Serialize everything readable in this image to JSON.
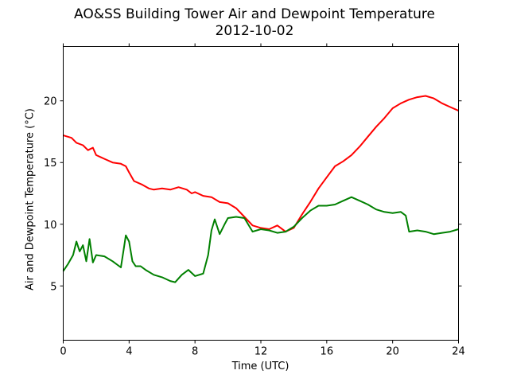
{
  "chart_data": {
    "type": "line",
    "title": "AO&SS Building Tower Air and Dewpoint Temperature",
    "subtitle": "2012-10-02",
    "xlabel": "Time (UTC)",
    "ylabel": "Air and Dewpoint Temperature (°C)",
    "xlim": [
      0,
      24
    ],
    "ylim": [
      0.6,
      24.4
    ],
    "xticks": [
      0,
      4,
      8,
      12,
      16,
      20,
      24
    ],
    "yticks": [
      5,
      10,
      15,
      20
    ],
    "grid": false,
    "legend": "none",
    "series": [
      {
        "color": "#ff0000",
        "x": [
          0,
          0.5,
          0.8,
          1.2,
          1.5,
          1.8,
          2.0,
          2.5,
          3.0,
          3.5,
          3.8,
          4.0,
          4.3,
          4.8,
          5.2,
          5.5,
          6.0,
          6.5,
          7.0,
          7.5,
          7.8,
          8.0,
          8.5,
          9.0,
          9.5,
          10.0,
          10.5,
          11.0,
          11.5,
          12.0,
          12.5,
          13.0,
          13.5,
          14.0,
          14.5,
          15.0,
          15.5,
          16.0,
          16.5,
          17.0,
          17.5,
          18.0,
          18.5,
          19.0,
          19.5,
          20.0,
          20.5,
          21.0,
          21.5,
          22.0,
          22.5,
          23.0,
          23.5,
          24.0
        ],
        "y": [
          17.2,
          17.0,
          16.6,
          16.4,
          16.0,
          16.2,
          15.6,
          15.3,
          15.0,
          14.9,
          14.7,
          14.2,
          13.5,
          13.2,
          12.9,
          12.8,
          12.9,
          12.8,
          13.0,
          12.8,
          12.5,
          12.6,
          12.3,
          12.2,
          11.8,
          11.7,
          11.3,
          10.6,
          9.9,
          9.7,
          9.6,
          9.9,
          9.4,
          9.7,
          10.8,
          11.8,
          12.9,
          13.8,
          14.7,
          15.1,
          15.6,
          16.3,
          17.1,
          17.9,
          18.6,
          19.4,
          19.8,
          20.1,
          20.3,
          20.4,
          20.2,
          19.8,
          19.5,
          19.2
        ]
      },
      {
        "color": "#008000",
        "x": [
          0,
          0.3,
          0.6,
          0.8,
          1.0,
          1.2,
          1.4,
          1.6,
          1.8,
          2.0,
          2.5,
          3.0,
          3.5,
          3.7,
          3.8,
          4.0,
          4.2,
          4.4,
          4.7,
          5.0,
          5.5,
          6.0,
          6.5,
          6.8,
          7.2,
          7.6,
          8.0,
          8.5,
          8.8,
          9.0,
          9.2,
          9.5,
          9.8,
          10.0,
          10.5,
          11.0,
          11.5,
          12.0,
          12.5,
          13.0,
          13.5,
          14.0,
          14.5,
          15.0,
          15.5,
          16.0,
          16.5,
          17.0,
          17.5,
          18.0,
          18.5,
          19.0,
          19.5,
          20.0,
          20.5,
          20.8,
          21.0,
          21.5,
          22.0,
          22.5,
          23.0,
          23.5,
          24.0
        ],
        "y": [
          6.2,
          6.8,
          7.5,
          8.6,
          7.8,
          8.3,
          7.0,
          8.8,
          6.9,
          7.5,
          7.4,
          7.0,
          6.5,
          8.2,
          9.1,
          8.6,
          7.0,
          6.6,
          6.6,
          6.3,
          5.9,
          5.7,
          5.4,
          5.3,
          5.9,
          6.3,
          5.8,
          6.0,
          7.5,
          9.5,
          10.4,
          9.2,
          10.0,
          10.5,
          10.6,
          10.5,
          9.4,
          9.6,
          9.5,
          9.3,
          9.4,
          9.8,
          10.5,
          11.1,
          11.5,
          11.5,
          11.6,
          11.9,
          12.2,
          11.9,
          11.6,
          11.2,
          11.0,
          10.9,
          11.0,
          10.7,
          9.4,
          9.5,
          9.4,
          9.2,
          9.3,
          9.4,
          9.6
        ]
      }
    ]
  }
}
